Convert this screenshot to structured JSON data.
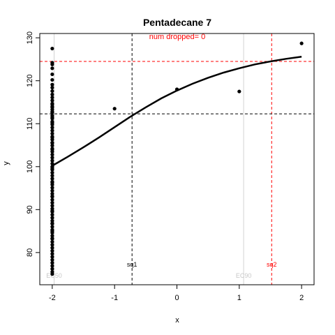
{
  "chart_data": {
    "type": "scatter",
    "title": "Pentadecane 7",
    "subtitle": "num dropped= 0",
    "subtitle_color": "#ff0000",
    "xlabel": "x",
    "ylabel": "y",
    "xlim": [
      -2.2,
      2.2
    ],
    "ylim": [
      72.5,
      131
    ],
    "xticks": [
      -2,
      -1,
      0,
      1,
      2
    ],
    "yticks": [
      80,
      90,
      100,
      110,
      120,
      130
    ],
    "grid": false,
    "points": {
      "x": [
        -2,
        -2,
        -2,
        -2,
        -2,
        -2,
        -2,
        -2,
        -2,
        -2,
        -2,
        -2,
        -2,
        -2,
        -2,
        -2,
        -2,
        -2,
        -2,
        -2,
        -2,
        -2,
        -2,
        -2,
        -2,
        -2,
        -2,
        -2,
        -2,
        -2,
        -2,
        -2,
        -2,
        -2,
        -2,
        -2,
        -2,
        -2,
        -2,
        -2,
        -2,
        -2,
        -2,
        -2,
        -2,
        -2,
        -2,
        -2,
        -2,
        -2,
        -2,
        -2,
        -2,
        -2,
        -2,
        -2,
        -2,
        -2,
        -2,
        -2,
        -2,
        -2,
        -2,
        -2,
        -2,
        -2,
        -2,
        -2,
        -2,
        -2,
        -2,
        -2,
        -2,
        -2,
        -2,
        -2,
        -2,
        -2,
        -2,
        -2,
        -2,
        -2,
        -2,
        -2,
        -2,
        -2,
        -1,
        0,
        1,
        2
      ],
      "y": [
        127.5,
        124.2,
        123.8,
        122.9,
        121.5,
        120.2,
        119.1,
        118.4,
        117.6,
        116.8,
        116.1,
        115.4,
        114.7,
        114.0,
        113.3,
        112.6,
        111.9,
        111.2,
        110.5,
        109.8,
        109.1,
        108.4,
        107.7,
        107.0,
        106.3,
        105.6,
        104.9,
        104.2,
        103.5,
        102.8,
        102.1,
        101.4,
        100.7,
        100.0,
        99.3,
        98.6,
        97.9,
        97.2,
        96.5,
        95.8,
        95.1,
        94.4,
        93.7,
        93.0,
        92.3,
        91.6,
        90.9,
        90.2,
        89.5,
        88.8,
        88.1,
        87.4,
        86.7,
        86.0,
        85.3,
        84.6,
        83.9,
        83.2,
        82.5,
        81.8,
        81.1,
        80.4,
        79.7,
        79.0,
        78.3,
        77.6,
        76.9,
        76.2,
        75.5,
        75.0,
        114.5,
        113.8,
        112.8,
        111.5,
        110.2,
        106.8,
        105.5,
        104.0,
        99.9,
        99.5,
        96.3,
        93.1,
        89.7,
        86.8,
        85.0,
        83.3,
        113.5,
        118.0,
        117.5,
        128.7
      ]
    },
    "fit_curve": {
      "x": [
        -2.0,
        -1.75,
        -1.5,
        -1.25,
        -1.0,
        -0.75,
        -0.5,
        -0.25,
        0.0,
        0.25,
        0.5,
        0.75,
        1.0,
        1.25,
        1.5,
        1.75,
        2.0
      ],
      "y": [
        100.2,
        102.3,
        104.5,
        106.8,
        109.2,
        111.6,
        113.8,
        115.9,
        117.7,
        119.3,
        120.7,
        121.9,
        122.9,
        123.8,
        124.5,
        125.1,
        125.6
      ]
    },
    "hlines": [
      {
        "y": 112.3,
        "color": "#000000",
        "style": "dashed"
      },
      {
        "y": 124.5,
        "color": "#ff0000",
        "style": "dashed"
      }
    ],
    "vlines": [
      {
        "x": -1.97,
        "color": "#d3d3d3",
        "style": "solid",
        "label": "EC50"
      },
      {
        "x": -0.72,
        "color": "#000000",
        "style": "dashed",
        "label": "sq1"
      },
      {
        "x": 1.07,
        "color": "#d3d3d3",
        "style": "solid",
        "label": "EC90"
      },
      {
        "x": 1.52,
        "color": "#ff0000",
        "style": "dashed",
        "label": "sq2"
      }
    ]
  }
}
